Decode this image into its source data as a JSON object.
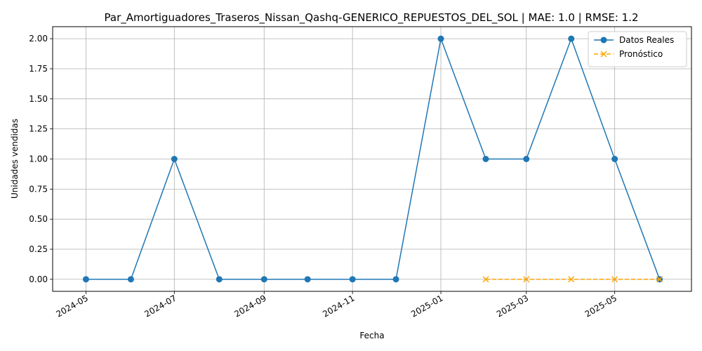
{
  "chart_data": {
    "type": "line",
    "title": "Par_Amortiguadores_Traseros_Nissan_Qashq-GENERICO_REPUESTOS_DEL_SOL | MAE: 1.0 | RMSE: 1.2",
    "xlabel": "Fecha",
    "ylabel": "Unidades vendidas",
    "x_tick_labels": [
      "2024-05",
      "2024-07",
      "2024-09",
      "2024-11",
      "2025-01",
      "2025-03",
      "2025-05"
    ],
    "y_tick_labels": [
      "0.00",
      "0.25",
      "0.50",
      "0.75",
      "1.00",
      "1.25",
      "1.50",
      "1.75",
      "2.00"
    ],
    "ylim": [
      -0.1,
      2.1
    ],
    "xlim": [
      "2024-04-08",
      "2025-06-23"
    ],
    "grid": true,
    "legend_position": "top-right",
    "series": [
      {
        "name": "Datos Reales",
        "color": "#1f77b4",
        "marker": "circle",
        "linestyle": "solid",
        "x": [
          "2024-05-01",
          "2024-06-01",
          "2024-07-01",
          "2024-08-01",
          "2024-09-01",
          "2024-10-01",
          "2024-11-01",
          "2024-12-01",
          "2025-01-01",
          "2025-02-01",
          "2025-03-01",
          "2025-04-01",
          "2025-05-01",
          "2025-06-01"
        ],
        "values": [
          0,
          0,
          1,
          0,
          0,
          0,
          0,
          0,
          2,
          1,
          1,
          2,
          1,
          0
        ]
      },
      {
        "name": "Pronóstico",
        "color": "#ffa500",
        "marker": "x",
        "linestyle": "dashed",
        "x": [
          "2025-02-01",
          "2025-03-01",
          "2025-04-01",
          "2025-05-01",
          "2025-06-01"
        ],
        "values": [
          0,
          0,
          0,
          0,
          0
        ]
      }
    ]
  }
}
